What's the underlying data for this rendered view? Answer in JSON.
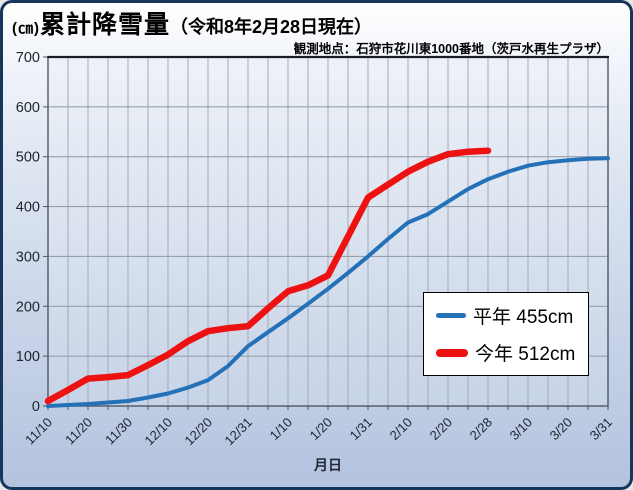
{
  "header": {
    "unit_label": "(㎝)",
    "title": "累計降雪量",
    "title_suffix": "（令和8年2月28日現在）",
    "subtitle": "観測地点：石狩市花川東1000番地（茨戸水再生プラザ）"
  },
  "axis": {
    "xlabel": "月日"
  },
  "legend": {
    "items": [
      {
        "label": "平年 455cm",
        "color": "#2471b8"
      },
      {
        "label": "今年 512cm",
        "color": "#ee1111"
      }
    ]
  },
  "chart_data": {
    "type": "line",
    "title": "累計降雪量（令和8年2月28日現在）",
    "subtitle": "観測地点：石狩市花川東1000番地（茨戸水再生プラザ）",
    "xlabel": "月日",
    "ylabel": "(㎝)",
    "ylim": [
      0,
      700
    ],
    "y_ticks": [
      0,
      100,
      200,
      300,
      400,
      500,
      600,
      700
    ],
    "grid": true,
    "legend_position": "inside-right",
    "x": [
      "11/10",
      "11/15",
      "11/20",
      "11/25",
      "11/30",
      "12/5",
      "12/10",
      "12/15",
      "12/20",
      "12/25",
      "12/31",
      "1/5",
      "1/10",
      "1/15",
      "1/20",
      "1/25",
      "1/31",
      "2/5",
      "2/10",
      "2/15",
      "2/20",
      "2/25",
      "2/28",
      "3/5",
      "3/10",
      "3/15",
      "3/20",
      "3/25",
      "3/31"
    ],
    "x_tick_labels": [
      "11/10",
      "11/20",
      "11/30",
      "12/10",
      "12/20",
      "12/31",
      "1/10",
      "1/20",
      "1/31",
      "2/10",
      "2/20",
      "2/28",
      "3/10",
      "3/20",
      "3/31"
    ],
    "label_every": 2,
    "series": [
      {
        "name": "平年",
        "total": "455cm",
        "color": "#2471b8",
        "stroke_width": 4,
        "values": [
          0,
          2,
          4,
          7,
          10,
          17,
          25,
          37,
          52,
          80,
          120,
          148,
          176,
          205,
          235,
          267,
          300,
          335,
          368,
          385,
          410,
          435,
          455,
          470,
          482,
          489,
          493,
          496,
          497
        ]
      },
      {
        "name": "今年",
        "total": "512cm",
        "color": "#ee1111",
        "stroke_width": 6.5,
        "values": [
          10,
          32,
          55,
          58,
          62,
          82,
          103,
          130,
          150,
          156,
          160,
          196,
          230,
          242,
          262,
          340,
          418,
          444,
          470,
          490,
          505,
          510,
          512,
          null,
          null,
          null,
          null,
          null,
          null
        ]
      }
    ]
  }
}
